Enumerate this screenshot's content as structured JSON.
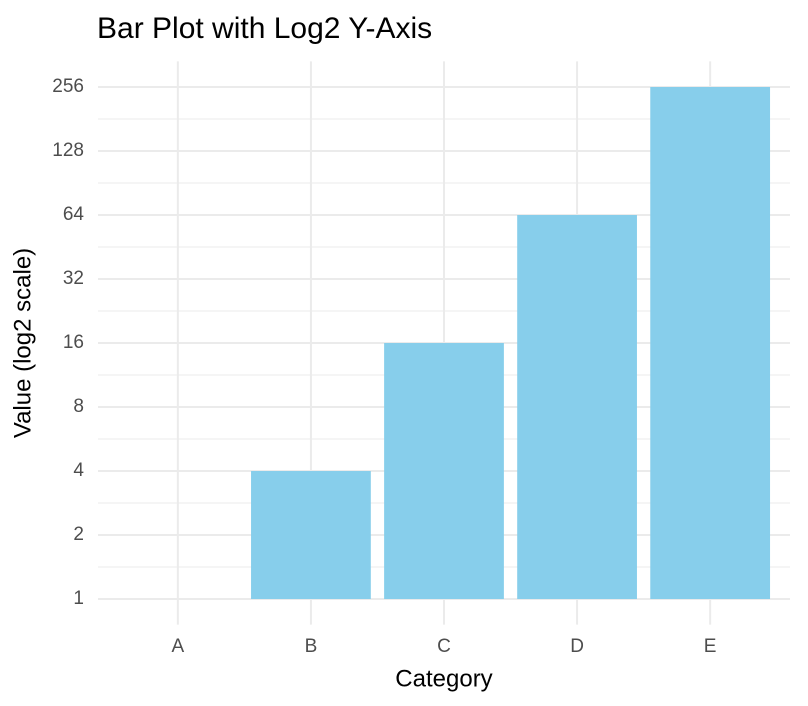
{
  "chart_data": {
    "type": "bar",
    "title": "Bar Plot with Log2 Y-Axis",
    "x_label": "Category",
    "y_label": "Value (log2 scale)",
    "categories": [
      "A",
      "B",
      "C",
      "D",
      "E"
    ],
    "values": [
      1,
      4,
      16,
      64,
      256
    ],
    "color": "#87ceeb",
    "yscale": "log",
    "log_base": 2,
    "ylim": [
      0.758,
      337.8
    ],
    "yticks": [
      1,
      2,
      4,
      8,
      16,
      32,
      64,
      128,
      256
    ],
    "grid": true
  }
}
